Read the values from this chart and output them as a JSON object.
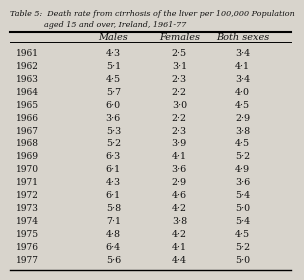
{
  "title_line1": "Table 5:  Death rate from cirrhosis of the liver per 100,000 Population",
  "title_line2": "aged 15 and over, Ireland, 1961-77",
  "col_headers": [
    "Males",
    "Females",
    "Both sexes"
  ],
  "years": [
    "1961",
    "1962",
    "1963",
    "1964",
    "1965",
    "1966",
    "1967",
    "1968",
    "1969",
    "1970",
    "1971",
    "1972",
    "1973",
    "1974",
    "1975",
    "1976",
    "1977"
  ],
  "males": [
    4.3,
    5.1,
    4.5,
    5.7,
    6.0,
    3.6,
    5.3,
    5.2,
    6.3,
    6.1,
    4.3,
    6.1,
    5.8,
    7.1,
    4.8,
    6.4,
    5.6
  ],
  "females": [
    2.5,
    3.1,
    2.3,
    2.2,
    3.0,
    2.2,
    2.3,
    3.9,
    4.1,
    3.6,
    2.9,
    4.6,
    4.2,
    3.8,
    4.2,
    4.1,
    4.4
  ],
  "both_sexes": [
    3.4,
    4.1,
    3.4,
    4.0,
    4.5,
    2.9,
    3.8,
    4.5,
    5.2,
    4.9,
    3.6,
    5.4,
    5.0,
    5.4,
    4.5,
    5.2,
    5.0
  ],
  "bg_color": "#d8d4cc",
  "text_color": "#111111",
  "title_fontsize": 5.8,
  "header_fontsize": 7.0,
  "data_fontsize": 6.8,
  "year_fontsize": 6.5
}
